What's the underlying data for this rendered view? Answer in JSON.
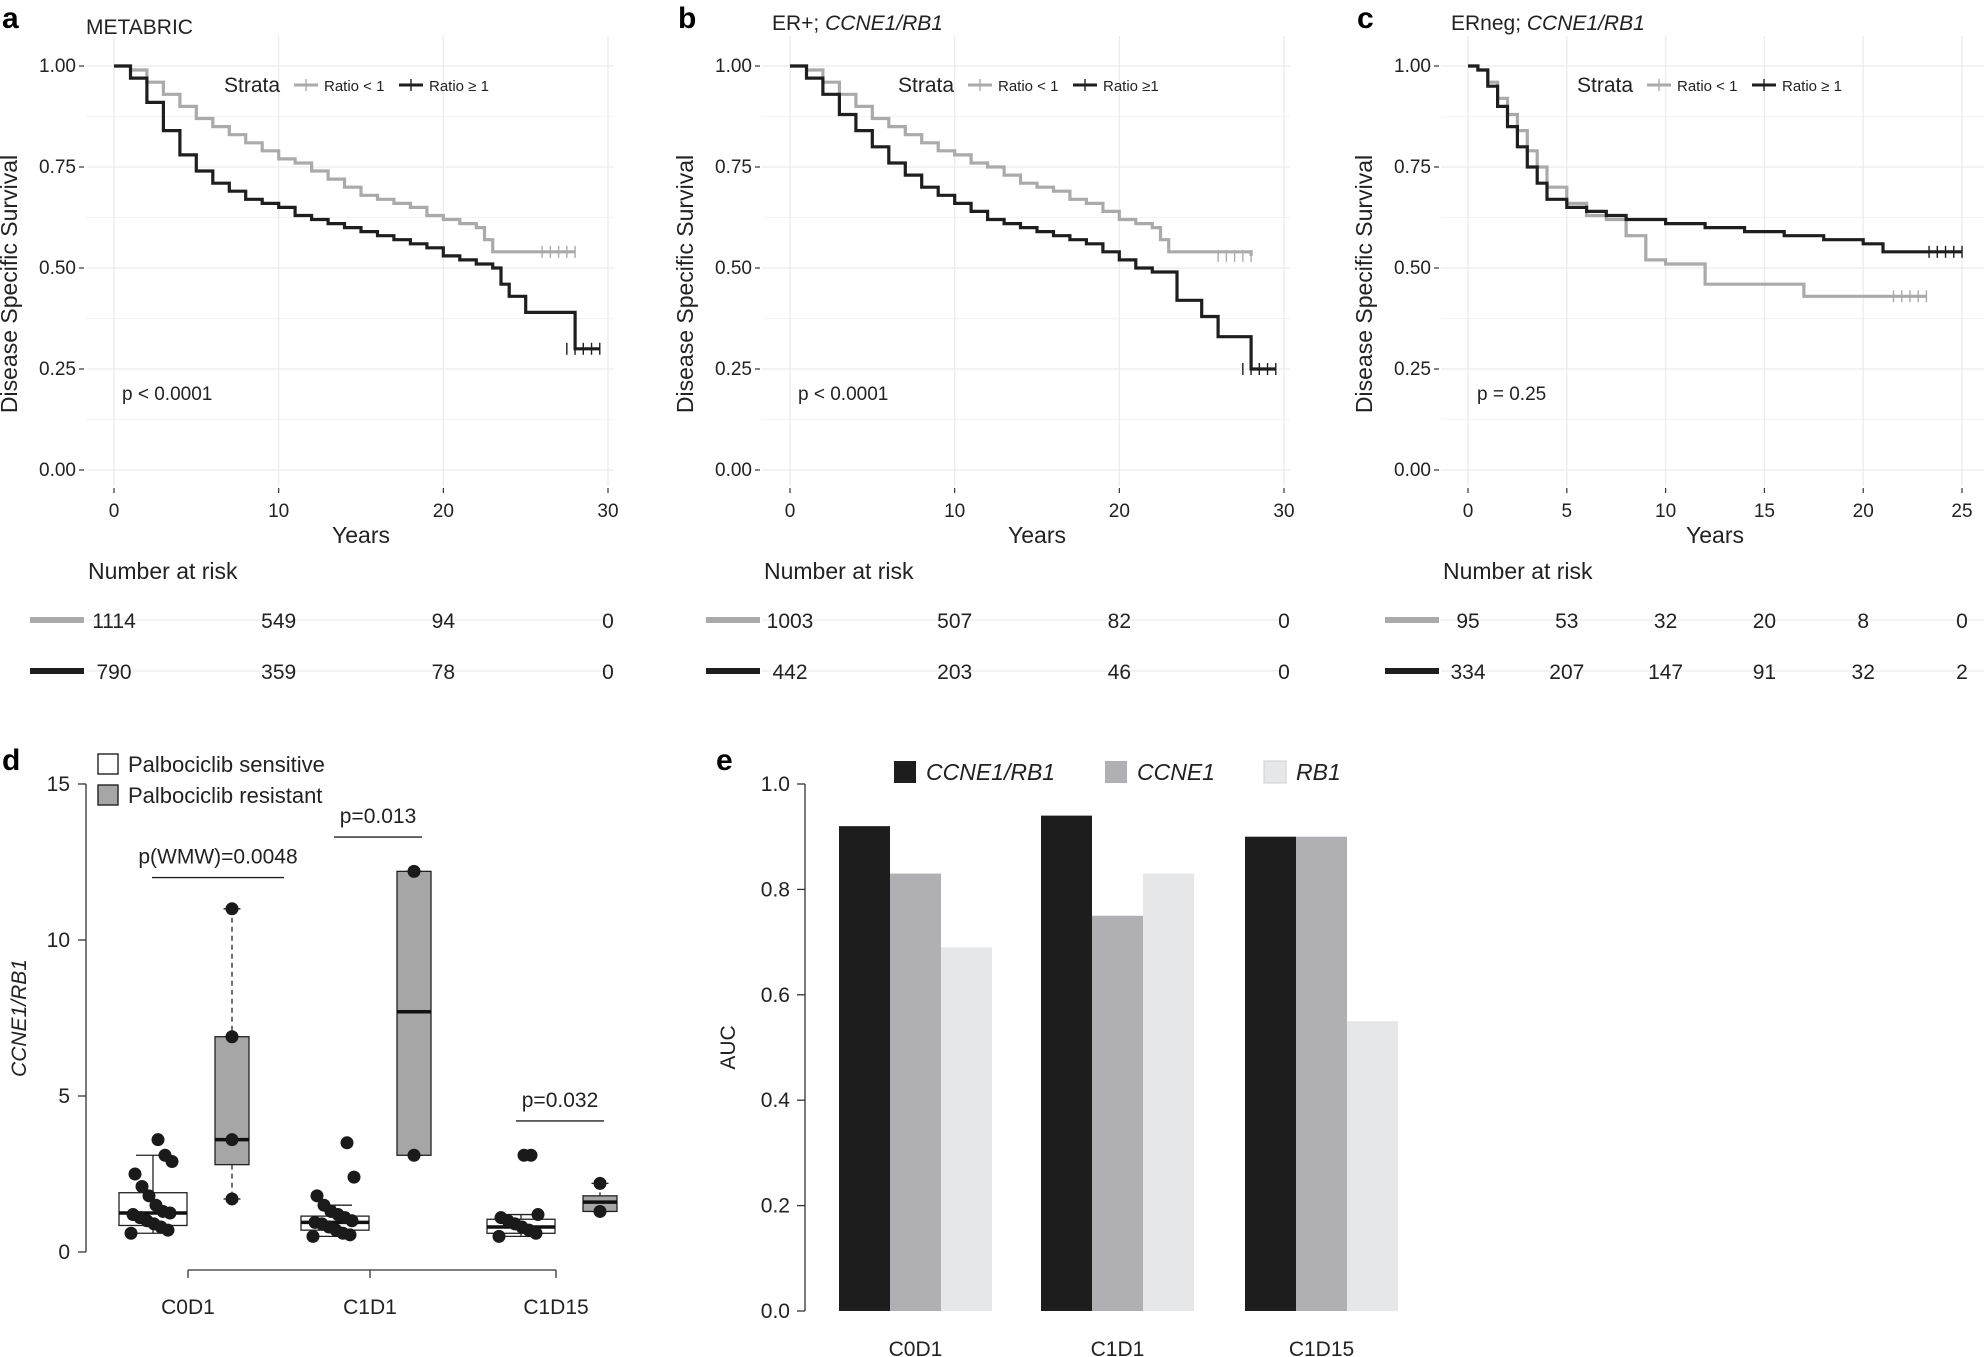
{
  "colors": {
    "light": "#aaaaaa",
    "dark": "#1e1e1e",
    "grid": "#ececec",
    "box_resistant": "#a6a6a6",
    "box_sensitive": "#ffffff"
  },
  "chart_data": [
    {
      "panel": "a",
      "type": "line",
      "title": "METABRIC",
      "xlabel": "Years",
      "ylabel": "Disease Specific Survival",
      "xlim": [
        0,
        30
      ],
      "ylim": [
        0,
        1
      ],
      "xticks": [
        "0",
        "10",
        "20",
        "30"
      ],
      "yticks": [
        "0.00",
        "0.25",
        "0.50",
        "0.75",
        "1.00"
      ],
      "legend": {
        "title": "Strata",
        "labels": [
          "Ratio < 1",
          "Ratio ≥ 1"
        ]
      },
      "pvalue": "p < 0.0001",
      "series": [
        {
          "name": "Ratio < 1",
          "x": [
            0,
            1,
            2,
            3,
            4,
            5,
            6,
            7,
            8,
            9,
            10,
            11,
            12,
            13,
            14,
            15,
            16,
            17,
            18,
            19,
            20,
            21,
            22,
            22.5,
            23,
            28
          ],
          "y": [
            1.0,
            0.99,
            0.96,
            0.93,
            0.9,
            0.87,
            0.85,
            0.83,
            0.81,
            0.79,
            0.77,
            0.76,
            0.74,
            0.72,
            0.7,
            0.68,
            0.67,
            0.66,
            0.65,
            0.63,
            0.62,
            0.61,
            0.6,
            0.57,
            0.54,
            0.54
          ]
        },
        {
          "name": "Ratio ≥ 1",
          "x": [
            0,
            1,
            2,
            3,
            4,
            5,
            6,
            7,
            8,
            9,
            10,
            11,
            12,
            13,
            14,
            15,
            16,
            17,
            18,
            19,
            20,
            21,
            22,
            23,
            23.5,
            24,
            25,
            26,
            27,
            28,
            29.5
          ],
          "y": [
            1.0,
            0.97,
            0.91,
            0.84,
            0.78,
            0.74,
            0.71,
            0.69,
            0.67,
            0.66,
            0.65,
            0.63,
            0.62,
            0.61,
            0.6,
            0.59,
            0.58,
            0.57,
            0.56,
            0.55,
            0.53,
            0.52,
            0.51,
            0.5,
            0.46,
            0.43,
            0.39,
            0.39,
            0.39,
            0.3,
            0.3
          ]
        }
      ],
      "risk_table": {
        "title": "Number at risk",
        "times": [
          "0",
          "10",
          "20",
          "30"
        ],
        "rows": [
          [
            "1114",
            "549",
            "94",
            "0"
          ],
          [
            "790",
            "359",
            "78",
            "0"
          ]
        ]
      }
    },
    {
      "panel": "b",
      "type": "line",
      "title_prefix": "ER+; ",
      "title_italic": "CCNE1/RB1",
      "xlabel": "Years",
      "ylabel": "Disease Specific Survival",
      "xlim": [
        0,
        30
      ],
      "ylim": [
        0,
        1
      ],
      "xticks": [
        "0",
        "10",
        "20",
        "30"
      ],
      "yticks": [
        "0.00",
        "0.25",
        "0.50",
        "0.75",
        "1.00"
      ],
      "legend": {
        "title": "Strata",
        "labels": [
          "Ratio < 1",
          "Ratio ≥1"
        ]
      },
      "pvalue": "p < 0.0001",
      "series": [
        {
          "name": "Ratio < 1",
          "x": [
            0,
            1,
            2,
            3,
            4,
            5,
            6,
            7,
            8,
            9,
            10,
            11,
            12,
            13,
            14,
            15,
            16,
            17,
            18,
            19,
            20,
            21,
            22,
            22.5,
            23,
            28
          ],
          "y": [
            1.0,
            0.99,
            0.96,
            0.93,
            0.9,
            0.87,
            0.85,
            0.83,
            0.81,
            0.79,
            0.78,
            0.76,
            0.75,
            0.73,
            0.71,
            0.7,
            0.69,
            0.67,
            0.66,
            0.64,
            0.62,
            0.61,
            0.6,
            0.57,
            0.54,
            0.53
          ]
        },
        {
          "name": "Ratio ≥ 1",
          "x": [
            0,
            1,
            2,
            3,
            4,
            5,
            6,
            7,
            8,
            9,
            10,
            11,
            12,
            13,
            14,
            15,
            16,
            17,
            18,
            19,
            20,
            21,
            22,
            23,
            23.5,
            24,
            25,
            26,
            27,
            28,
            29.5
          ],
          "y": [
            1.0,
            0.97,
            0.93,
            0.88,
            0.84,
            0.8,
            0.76,
            0.73,
            0.7,
            0.68,
            0.66,
            0.64,
            0.62,
            0.61,
            0.6,
            0.59,
            0.58,
            0.57,
            0.56,
            0.54,
            0.52,
            0.5,
            0.49,
            0.49,
            0.42,
            0.42,
            0.38,
            0.33,
            0.33,
            0.25,
            0.25
          ]
        }
      ],
      "risk_table": {
        "title": "Number at risk",
        "times": [
          "0",
          "10",
          "20",
          "30"
        ],
        "rows": [
          [
            "1003",
            "507",
            "82",
            "0"
          ],
          [
            "442",
            "203",
            "46",
            "0"
          ]
        ]
      }
    },
    {
      "panel": "c",
      "type": "line",
      "title_prefix": "ERneg; ",
      "title_italic": "CCNE1/RB1",
      "xlabel": "Years",
      "ylabel": "Disease Specific Survival",
      "xlim": [
        0,
        25
      ],
      "ylim": [
        0,
        1
      ],
      "xticks": [
        "0",
        "5",
        "10",
        "15",
        "20",
        "25"
      ],
      "yticks": [
        "0.00",
        "0.25",
        "0.50",
        "0.75",
        "1.00"
      ],
      "legend": {
        "title": "Strata",
        "labels": [
          "Ratio < 1",
          "Ratio ≥ 1"
        ]
      },
      "pvalue": "p = 0.25",
      "series": [
        {
          "name": "Ratio < 1",
          "x": [
            0,
            0.5,
            1,
            1.5,
            2,
            2.5,
            3,
            3.5,
            4,
            5,
            6,
            7,
            8,
            9,
            10,
            12,
            13,
            16,
            17,
            23.2
          ],
          "y": [
            1.0,
            0.99,
            0.96,
            0.92,
            0.88,
            0.84,
            0.79,
            0.75,
            0.7,
            0.66,
            0.63,
            0.62,
            0.58,
            0.52,
            0.51,
            0.46,
            0.46,
            0.46,
            0.43,
            0.43
          ]
        },
        {
          "name": "Ratio ≥ 1",
          "x": [
            0,
            0.5,
            1,
            1.5,
            2,
            2.5,
            3,
            3.5,
            4,
            5,
            6,
            7,
            8,
            10,
            12,
            14,
            16,
            18,
            20,
            21,
            25
          ],
          "y": [
            1.0,
            0.99,
            0.95,
            0.9,
            0.85,
            0.8,
            0.75,
            0.71,
            0.67,
            0.65,
            0.64,
            0.63,
            0.62,
            0.61,
            0.6,
            0.59,
            0.58,
            0.57,
            0.56,
            0.54,
            0.54
          ]
        }
      ],
      "risk_table": {
        "title": "Number at risk",
        "times": [
          "0",
          "5",
          "10",
          "15",
          "20",
          "25"
        ],
        "rows": [
          [
            "95",
            "53",
            "32",
            "20",
            "8",
            "0"
          ],
          [
            "334",
            "207",
            "147",
            "91",
            "32",
            "2"
          ]
        ]
      }
    },
    {
      "panel": "d",
      "type": "box",
      "ylabel": "CCNE1/RB1",
      "ylim": [
        0,
        15
      ],
      "yticks": [
        "0",
        "5",
        "10",
        "15"
      ],
      "categories": [
        "C0D1",
        "C1D1",
        "C1D15"
      ],
      "legend": [
        "Palbociclib sensitive",
        "Palbociclib resistant"
      ],
      "boxes": [
        {
          "category": "C0D1",
          "group": "sensitive",
          "whislo": 0.6,
          "q1": 0.85,
          "median": 1.25,
          "q3": 1.9,
          "whishi": 3.1,
          "points": [
            0.6,
            0.7,
            0.8,
            0.9,
            1.0,
            1.1,
            1.2,
            1.25,
            1.3,
            1.5,
            1.8,
            2.1,
            2.5,
            2.9,
            3.1,
            3.6
          ]
        },
        {
          "category": "C0D1",
          "group": "resistant",
          "whislo": 1.7,
          "q1": 2.8,
          "median": 3.6,
          "q3": 6.9,
          "whishi": 11.0,
          "points": [
            1.7,
            3.6,
            6.9,
            11.0
          ]
        },
        {
          "category": "C1D1",
          "group": "sensitive",
          "whislo": 0.5,
          "q1": 0.7,
          "median": 0.95,
          "q3": 1.15,
          "whishi": 1.5,
          "points": [
            0.5,
            0.55,
            0.6,
            0.7,
            0.8,
            0.9,
            0.95,
            1.0,
            1.1,
            1.2,
            1.3,
            1.5,
            1.8,
            2.4,
            3.5
          ]
        },
        {
          "category": "C1D1",
          "group": "resistant",
          "whislo": 3.1,
          "q1": 3.1,
          "median": 7.7,
          "q3": 12.2,
          "whishi": 12.2,
          "points": [
            3.1,
            12.2
          ]
        },
        {
          "category": "C1D15",
          "group": "sensitive",
          "whislo": 0.5,
          "q1": 0.6,
          "median": 0.8,
          "q3": 1.05,
          "whishi": 1.2,
          "points": [
            0.5,
            0.6,
            0.7,
            0.8,
            0.9,
            1.0,
            1.1,
            1.2,
            3.1,
            3.1
          ]
        },
        {
          "category": "C1D15",
          "group": "resistant",
          "whislo": 1.3,
          "q1": 1.3,
          "median": 1.6,
          "q3": 1.8,
          "whishi": 2.2,
          "points": [
            1.3,
            2.2
          ]
        }
      ],
      "annotations": [
        {
          "category": "C0D1",
          "text": "p(WMW)=0.0048",
          "y": 12.0
        },
        {
          "category": "C1D1",
          "text": "p=0.013",
          "y": 13.3
        },
        {
          "category": "C1D15",
          "text": "p=0.032",
          "y": 4.2
        }
      ]
    },
    {
      "panel": "e",
      "type": "bar",
      "ylabel": "AUC",
      "ylim": [
        0,
        1
      ],
      "yticks": [
        "0.0",
        "0.2",
        "0.4",
        "0.6",
        "0.8",
        "1.0"
      ],
      "categories": [
        "C0D1",
        "C1D1",
        "C1D15"
      ],
      "series": [
        {
          "name": "CCNE1/RB1",
          "values": [
            0.92,
            0.94,
            0.9
          ]
        },
        {
          "name": "CCNE1",
          "values": [
            0.83,
            0.75,
            0.9
          ]
        },
        {
          "name": "RB1",
          "values": [
            0.69,
            0.83,
            0.55
          ]
        }
      ]
    }
  ]
}
